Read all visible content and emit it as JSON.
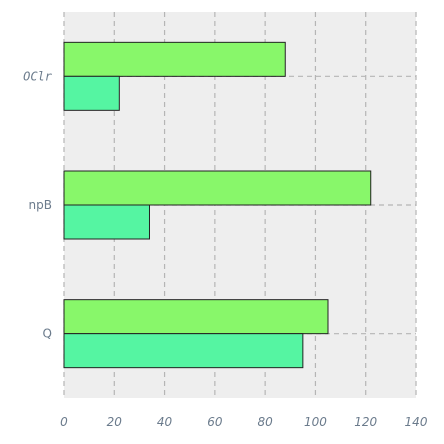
{
  "chart_data": {
    "type": "bar",
    "orientation": "horizontal",
    "categories": [
      "OClr",
      "npB",
      "Q"
    ],
    "series": [
      {
        "values": [
          88,
          122,
          105
        ],
        "color": "#88f76a"
      },
      {
        "values": [
          22,
          34,
          95
        ],
        "color": "#55f5a2"
      }
    ],
    "xlim": [
      0,
      140
    ],
    "xticks": [
      0,
      20,
      40,
      60,
      80,
      100,
      120,
      140
    ],
    "grid": true,
    "background": "#eeeeee"
  }
}
